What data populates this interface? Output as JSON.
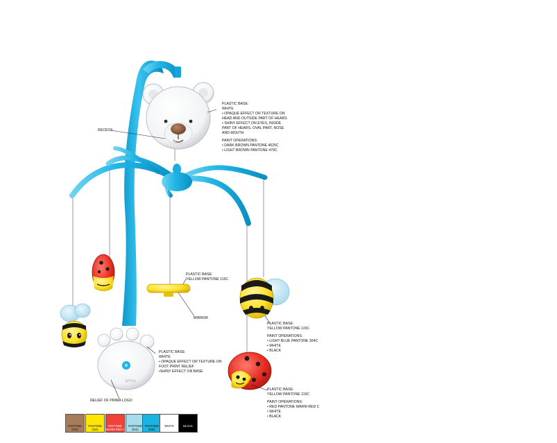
{
  "callouts": {
    "head": {
      "base_title": "Plastic base:",
      "base_color": "White",
      "bullets": [
        "• Opaque effect or texture on",
        "head and outside part of hears",
        "• Shiny effect on eyes, inside",
        "part of hears, oval part, nose",
        "and mouth"
      ],
      "paint_title": "Paint operations:",
      "paint": [
        "• Dark brown Pantone 4625C",
        "• Light brown Pantone 479C"
      ]
    },
    "recess": "Recess",
    "mirror_base": {
      "title": "Plastic base:",
      "color": "Yellow Pantone 115C"
    },
    "mirror": "Mirror",
    "bee": {
      "title": "Plastic base:",
      "color": "Yellow Pantone 115C",
      "paint_title": "Paint operations:",
      "paint": [
        "• Light blue Pantone 304C",
        "• White",
        "• Black"
      ]
    },
    "foot": {
      "title": "Plastic base:",
      "color": "White",
      "bullets": [
        "• Opaque effect or texture on",
        "foot print relief",
        "•Shiny effect on base"
      ]
    },
    "logo": "Relief of prima logo",
    "ladybug": {
      "title": "Plastic base:",
      "color": "Yellow Pantone 115C",
      "paint_title": "Paint operations:",
      "paint": [
        "• Red Pantone warm red C",
        "• White",
        "• Black"
      ]
    }
  },
  "logo_text": "prima",
  "swatches": [
    {
      "color": "#a67c5b",
      "lines": [
        "Pantone",
        "479C"
      ],
      "light": false
    },
    {
      "color": "#ffe600",
      "lines": [
        "Pantone",
        "115C"
      ],
      "light": false
    },
    {
      "color": "#f2413a",
      "lines": [
        "Pantone",
        "Warm red C"
      ],
      "light": true
    },
    {
      "color": "#a6dceb",
      "lines": [
        "Pantone",
        "304C"
      ],
      "light": false
    },
    {
      "color": "#1bb3e0",
      "lines": [
        "Pantone",
        "306C"
      ],
      "light": false
    },
    {
      "color": "#ffffff",
      "lines": [
        "White"
      ],
      "light": false
    },
    {
      "color": "#000000",
      "lines": [
        "Black"
      ],
      "light": true
    }
  ]
}
